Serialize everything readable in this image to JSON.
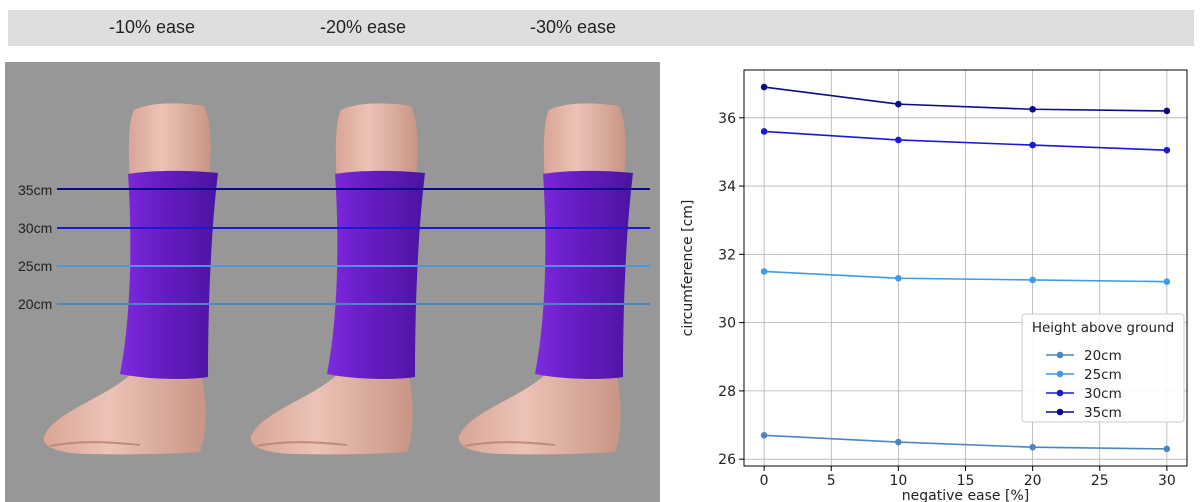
{
  "header": {
    "labels": [
      "-10% ease",
      "-20% ease",
      "-30% ease"
    ]
  },
  "render": {
    "height_lines": [
      {
        "label": "35cm",
        "color": "#0a0a8c"
      },
      {
        "label": "30cm",
        "color": "#1a1ad6"
      },
      {
        "label": "25cm",
        "color": "#3d9be8"
      },
      {
        "label": "20cm",
        "color": "#4a86c4"
      }
    ],
    "colors": {
      "background": "#979797",
      "sleeve": "#6a1ec8",
      "skin": "#e3b3a5"
    }
  },
  "chart_data": {
    "type": "line",
    "xlabel": "negative ease [%]",
    "ylabel": "circumference [cm]",
    "x": [
      0,
      10,
      20,
      30
    ],
    "xticks": [
      0,
      5,
      10,
      15,
      20,
      25,
      30
    ],
    "yticks": [
      26,
      28,
      30,
      32,
      34,
      36
    ],
    "xlim": [
      -1.5,
      31.5
    ],
    "ylim": [
      25.8,
      37.4
    ],
    "grid": true,
    "legend": {
      "title": "Height above ground",
      "position": "lower right"
    },
    "series": [
      {
        "name": "20cm",
        "color": "#4a86c4",
        "values": [
          26.7,
          26.5,
          26.35,
          26.3
        ]
      },
      {
        "name": "25cm",
        "color": "#3d9be8",
        "values": [
          31.5,
          31.3,
          31.25,
          31.2
        ]
      },
      {
        "name": "30cm",
        "color": "#1a1ad6",
        "values": [
          35.6,
          35.35,
          35.2,
          35.05
        ]
      },
      {
        "name": "35cm",
        "color": "#0a0a8c",
        "values": [
          36.9,
          36.4,
          36.25,
          36.2
        ]
      }
    ]
  }
}
